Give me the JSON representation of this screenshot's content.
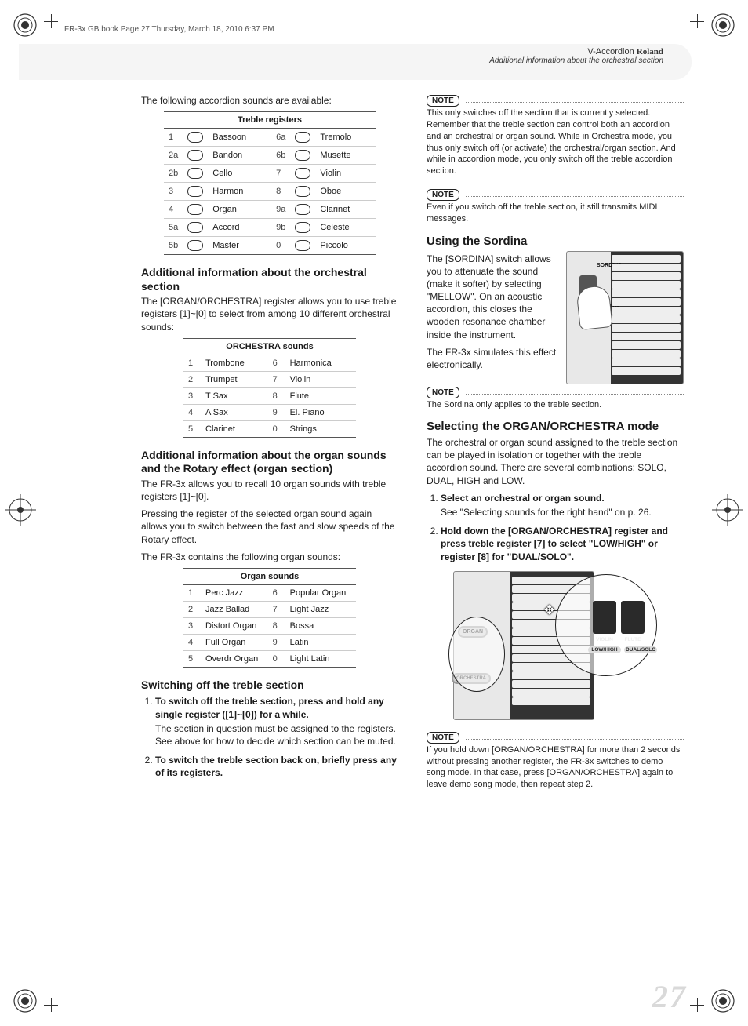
{
  "frame_header": "FR-3x GB.book  Page 27  Thursday, March 18, 2010  6:37 PM",
  "header": {
    "brand_prefix": "V-Accordion ",
    "brand": "Roland",
    "subtitle": "Additional information about the orchestral section"
  },
  "intro": "The following accordion sounds are available:",
  "treble_table": {
    "title": "Treble registers",
    "rows_left": [
      {
        "n": "1",
        "name": "Bassoon"
      },
      {
        "n": "2a",
        "name": "Bandon"
      },
      {
        "n": "2b",
        "name": "Cello"
      },
      {
        "n": "3",
        "name": "Harmon"
      },
      {
        "n": "4",
        "name": "Organ"
      },
      {
        "n": "5a",
        "name": "Accord"
      },
      {
        "n": "5b",
        "name": "Master"
      }
    ],
    "rows_right": [
      {
        "n": "6a",
        "name": "Tremolo"
      },
      {
        "n": "6b",
        "name": "Musette"
      },
      {
        "n": "7",
        "name": "Violin"
      },
      {
        "n": "8",
        "name": "Oboe"
      },
      {
        "n": "9a",
        "name": "Clarinet"
      },
      {
        "n": "9b",
        "name": "Celeste"
      },
      {
        "n": "0",
        "name": "Piccolo"
      }
    ]
  },
  "sect_orch_title": "Additional information about the orchestral section",
  "sect_orch_para": "The [ORGAN/ORCHESTRA] register allows you to use treble registers [1]~[0] to select from among 10 different orchestral sounds:",
  "orch_table": {
    "title": "ORCHESTRA sounds",
    "rows_left": [
      {
        "n": "1",
        "name": "Trombone"
      },
      {
        "n": "2",
        "name": "Trumpet"
      },
      {
        "n": "3",
        "name": "T Sax"
      },
      {
        "n": "4",
        "name": "A Sax"
      },
      {
        "n": "5",
        "name": "Clarinet"
      }
    ],
    "rows_right": [
      {
        "n": "6",
        "name": "Harmonica"
      },
      {
        "n": "7",
        "name": "Violin"
      },
      {
        "n": "8",
        "name": "Flute"
      },
      {
        "n": "9",
        "name": "El. Piano"
      },
      {
        "n": "0",
        "name": "Strings"
      }
    ]
  },
  "sect_organ_title": "Additional information about the organ sounds and the Rotary effect (organ section)",
  "sect_organ_p1": "The FR-3x allows you to recall 10 organ sounds with treble registers [1]~[0].",
  "sect_organ_p2": "Pressing the register of the selected organ sound again allows you to switch between the fast and slow speeds of the Rotary effect.",
  "sect_organ_p3": "The FR-3x contains the following organ sounds:",
  "organ_table": {
    "title": "Organ sounds",
    "rows_left": [
      {
        "n": "1",
        "name": "Perc Jazz"
      },
      {
        "n": "2",
        "name": "Jazz Ballad"
      },
      {
        "n": "3",
        "name": "Distort Organ"
      },
      {
        "n": "4",
        "name": "Full Organ"
      },
      {
        "n": "5",
        "name": "Overdr Organ"
      }
    ],
    "rows_right": [
      {
        "n": "6",
        "name": "Popular Organ"
      },
      {
        "n": "7",
        "name": "Light Jazz"
      },
      {
        "n": "8",
        "name": "Bossa"
      },
      {
        "n": "9",
        "name": "Latin"
      },
      {
        "n": "0",
        "name": "Light Latin"
      }
    ]
  },
  "switch_off_title": "Switching off the treble section",
  "switch_off_steps": [
    {
      "lead": "To switch off the treble section, press and hold any single register ([1]~[0]) for a while.",
      "sub": "The section in question must be assigned to the registers. See above for how to decide which section can be muted."
    },
    {
      "lead": "To switch the treble section back on, briefly press any of its registers.",
      "sub": ""
    }
  ],
  "note_label": "NOTE",
  "note1": "This only switches off the section that is currently selected. Remember that the treble section can control both an accordion and an orchestral or organ sound. While in Orchestra mode, you thus only switch off (or activate) the orchestral/organ section. And while in accordion mode, you only switch off the treble accordion section.",
  "note2": "Even if you switch off the treble section, it still transmits MIDI messages.",
  "sordina_title": "Using the Sordina",
  "sordina_p1": "The [SORDINA] switch allows you to attenuate the sound (make it softer) by selecting \"MELLOW\". On an acoustic accordion, this closes the wooden resonance chamber inside the instrument.",
  "sordina_p2": "The FR-3x simulates this effect electronically.",
  "sordina_labels": {
    "top": "SORDINA",
    "bottom": "MELLOW"
  },
  "note3": "The Sordina only applies to the treble section.",
  "mode_title": "Selecting the ORGAN/ORCHESTRA mode",
  "mode_p1": "The orchestral or organ sound assigned to the treble section can be played in isolation or together with the treble accordion sound. There are several combinations: SOLO, DUAL, HIGH and LOW.",
  "mode_steps": [
    {
      "lead": "Select an orchestral or organ sound.",
      "sub": "See \"Selecting sounds for the right hand\" on p. 26."
    },
    {
      "lead": "Hold down the [ORGAN/ORCHESTRA] register and press treble register [7] to select \"LOW/HIGH\" or register [8] for \"DUAL/SOLO\".",
      "sub": ""
    }
  ],
  "diagram2_labels": {
    "organ": "ORGAN",
    "orchestra": "ORCHESTRA",
    "violin": "VIOLIN",
    "flute": "FLUTE",
    "lowhigh": "LOW/HIGH",
    "dualsolo": "DUAL/SOLO"
  },
  "note4": "If you hold down [ORGAN/ORCHESTRA] for more than 2 seconds without pressing another register, the FR-3x switches to demo song mode. In that case, press [ORGAN/ORCHESTRA] again to leave demo song mode, then repeat step 2.",
  "page_number": "27",
  "colors": {
    "text": "#1a1a1a",
    "header_gray": "#f5f5f5",
    "rule": "#555555",
    "rule_light": "#cccccc",
    "pagenum": "#d9d9d9",
    "diagram_border": "#888888"
  },
  "typography": {
    "body_size_pt": 9,
    "heading_size_pt": 11,
    "table_header_weight": 700
  }
}
